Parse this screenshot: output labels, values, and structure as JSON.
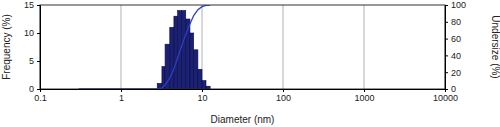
{
  "chart_data": {
    "type": "histogram",
    "x_label": "Diameter (nm)",
    "y_label": "Frequency (%)",
    "y2_label": "Undersize (%)",
    "bins": [
      2.8,
      3.2,
      3.5,
      4.0,
      4.5,
      5.0,
      5.6,
      6.3,
      7.1,
      7.9,
      8.9,
      10.0,
      11.2,
      12.6
    ],
    "values": [
      1,
      4,
      8,
      11,
      13,
      14,
      14,
      12.5,
      10,
      7,
      3.5,
      1.5,
      0.5
    ],
    "color": "#1b2175",
    "xlim": [
      0.1,
      10000
    ],
    "xticks": [
      0.1,
      1,
      10,
      100,
      1000,
      10000
    ],
    "ylim": [
      0,
      15
    ],
    "yticks": [
      0,
      5,
      10,
      15
    ],
    "y2lim": [
      0,
      100
    ],
    "y2ticks": [
      0,
      20,
      40,
      60,
      80,
      100
    ],
    "log": "x",
    "grid": true,
    "series": [
      {
        "type": "line",
        "axis": "y2",
        "color": "#2b3fc4",
        "x": [
          0.3,
          2.8,
          3.2,
          3.5,
          4.0,
          4.5,
          5.0,
          5.6,
          6.3,
          7.1,
          7.9,
          8.9,
          10.0,
          11.2,
          12.6
        ],
        "values": [
          0,
          0,
          1,
          5,
          13,
          24,
          37,
          51,
          65,
          77.5,
          87.5,
          94.5,
          98,
          99.5,
          100
        ]
      }
    ]
  }
}
